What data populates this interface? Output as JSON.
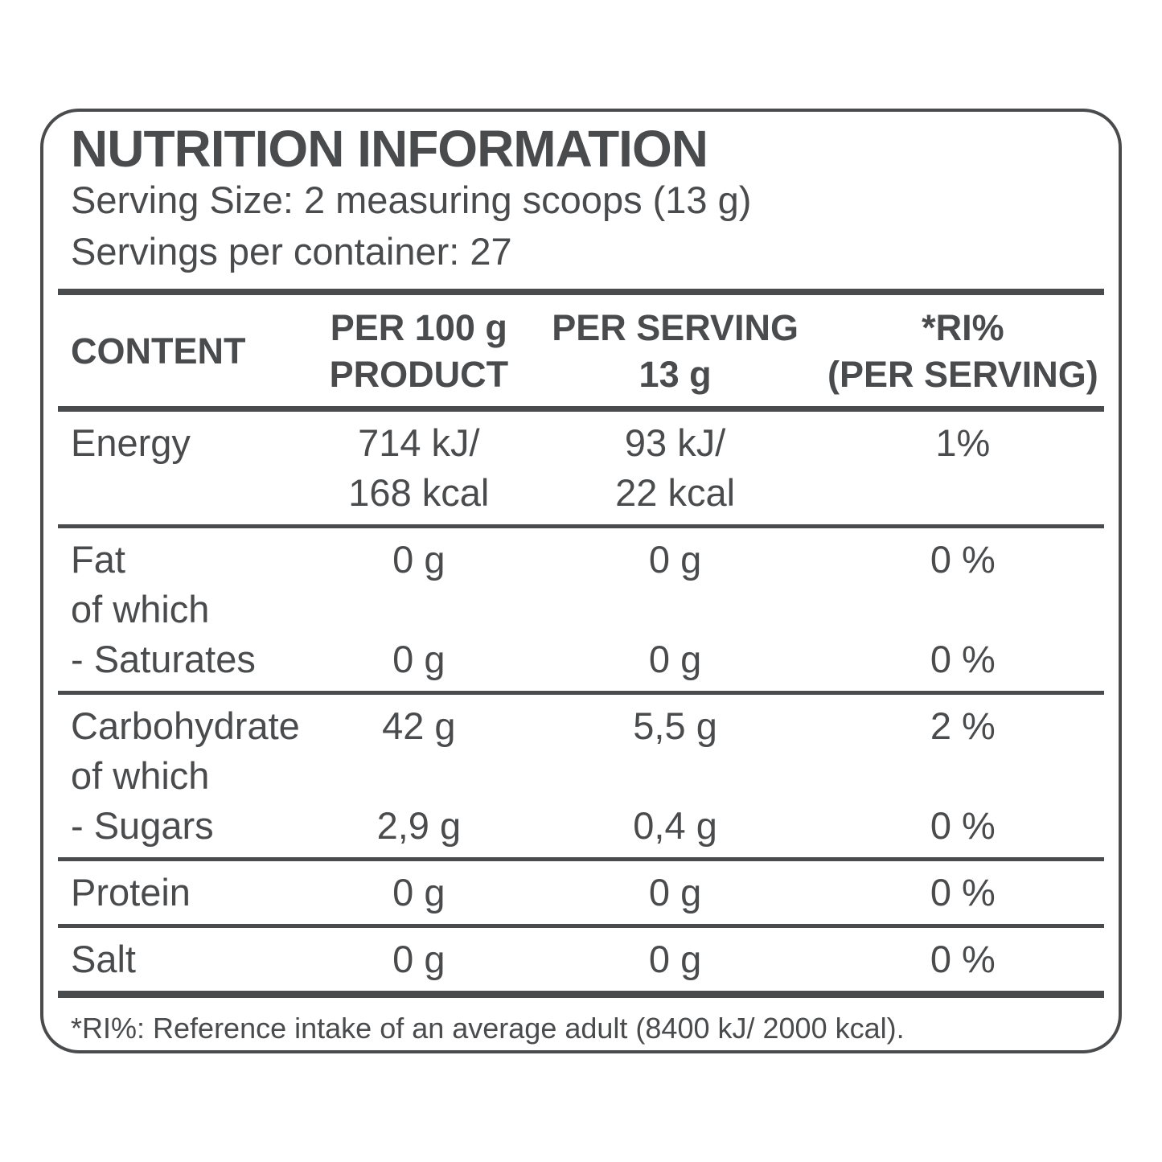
{
  "colors": {
    "text": "#4a4b4d",
    "line": "#4a4b4d",
    "background": "#ffffff"
  },
  "label": {
    "title": "NUTRITION INFORMATION",
    "serving_size": "Serving Size: 2 measuring scoops (13 g)",
    "servings_per_container": "Servings per container: 27",
    "footnote": "*RI%: Reference intake of an average adult (8400 kJ/ 2000 kcal)."
  },
  "table": {
    "headers": {
      "content": "CONTENT",
      "per100": [
        "PER 100 g",
        "PRODUCT"
      ],
      "per_serving": [
        "PER SERVING",
        "13 g"
      ],
      "ri": [
        "*RI%",
        "(PER SERVING)"
      ]
    },
    "rows": [
      {
        "lines": [
          {
            "label": "Energy",
            "per100": "714 kJ/",
            "serving": "93 kJ/",
            "ri": "1%"
          },
          {
            "label": "",
            "per100": "168 kcal",
            "serving": "22 kcal",
            "ri": ""
          }
        ]
      },
      {
        "lines": [
          {
            "label": "Fat",
            "per100": "0 g",
            "serving": "0 g",
            "ri": "0 %"
          },
          {
            "label": "of which",
            "per100": "",
            "serving": "",
            "ri": ""
          },
          {
            "label": "- Saturates",
            "per100": "0 g",
            "serving": "0 g",
            "ri": "0 %"
          }
        ]
      },
      {
        "lines": [
          {
            "label": "Carbohydrate",
            "per100": "42 g",
            "serving": "5,5 g",
            "ri": "2 %"
          },
          {
            "label": "of which",
            "per100": "",
            "serving": "",
            "ri": ""
          },
          {
            "label": "- Sugars",
            "per100": "2,9 g",
            "serving": "0,4 g",
            "ri": "0 %"
          }
        ]
      },
      {
        "lines": [
          {
            "label": "Protein",
            "per100": "0 g",
            "serving": "0 g",
            "ri": "0 %"
          }
        ]
      },
      {
        "lines": [
          {
            "label": "Salt",
            "per100": "0 g",
            "serving": "0 g",
            "ri": "0 %"
          }
        ]
      }
    ]
  }
}
